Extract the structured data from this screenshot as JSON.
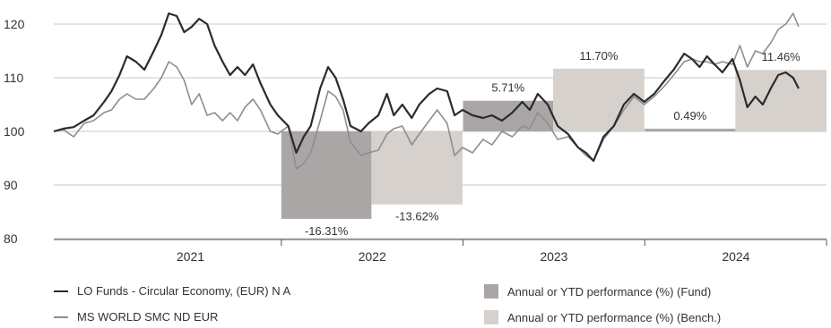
{
  "chart_data": {
    "type": "line",
    "title": "",
    "xlabel": "",
    "ylabel": "",
    "ylim": [
      80,
      122
    ],
    "y_ticks": [
      80,
      90,
      100,
      110,
      120
    ],
    "grid": true,
    "legend_placement": "bottom",
    "x_axis": {
      "start": "2020-10-01",
      "end": "2024-12-31",
      "tick_labels": [
        "2021",
        "2022",
        "2023",
        "2024"
      ]
    },
    "series": [
      {
        "name": "LO Funds - Circular Economy, (EUR) N A",
        "color": "#2b2b2b",
        "points": [
          [
            "2020-10-01",
            100
          ],
          [
            "2020-10-20",
            100.5
          ],
          [
            "2020-11-10",
            100.8
          ],
          [
            "2020-12-01",
            102
          ],
          [
            "2020-12-20",
            103
          ],
          [
            "2021-01-10",
            105.5
          ],
          [
            "2021-01-25",
            107.5
          ],
          [
            "2021-02-10",
            110.5
          ],
          [
            "2021-02-25",
            114
          ],
          [
            "2021-03-15",
            113
          ],
          [
            "2021-04-01",
            111.5
          ],
          [
            "2021-04-20",
            115
          ],
          [
            "2021-05-05",
            118
          ],
          [
            "2021-05-20",
            122
          ],
          [
            "2021-06-05",
            121.5
          ],
          [
            "2021-06-20",
            118.5
          ],
          [
            "2021-07-05",
            119.5
          ],
          [
            "2021-07-20",
            121
          ],
          [
            "2021-08-05",
            120
          ],
          [
            "2021-08-20",
            116
          ],
          [
            "2021-09-05",
            113
          ],
          [
            "2021-09-20",
            110.5
          ],
          [
            "2021-10-05",
            112
          ],
          [
            "2021-10-20",
            110.5
          ],
          [
            "2021-11-05",
            112.5
          ],
          [
            "2021-11-20",
            109
          ],
          [
            "2021-12-10",
            105
          ],
          [
            "2021-12-25",
            103
          ],
          [
            "2022-01-15",
            101
          ],
          [
            "2022-01-31",
            96
          ],
          [
            "2022-02-15",
            99
          ],
          [
            "2022-03-01",
            101
          ],
          [
            "2022-03-20",
            108
          ],
          [
            "2022-04-05",
            112
          ],
          [
            "2022-04-20",
            110
          ],
          [
            "2022-05-05",
            106
          ],
          [
            "2022-05-20",
            101
          ],
          [
            "2022-06-10",
            100
          ],
          [
            "2022-06-25",
            101.5
          ],
          [
            "2022-07-15",
            103
          ],
          [
            "2022-08-01",
            107
          ],
          [
            "2022-08-15",
            103
          ],
          [
            "2022-09-01",
            105
          ],
          [
            "2022-09-20",
            102.5
          ],
          [
            "2022-10-05",
            105
          ],
          [
            "2022-10-25",
            107
          ],
          [
            "2022-11-10",
            108
          ],
          [
            "2022-11-30",
            107.5
          ],
          [
            "2022-12-15",
            103
          ],
          [
            "2022-12-31",
            104
          ],
          [
            "2023-01-20",
            103
          ],
          [
            "2023-02-10",
            102.5
          ],
          [
            "2023-02-28",
            103
          ],
          [
            "2023-03-20",
            102
          ],
          [
            "2023-04-10",
            103.5
          ],
          [
            "2023-04-30",
            105.5
          ],
          [
            "2023-05-15",
            104
          ],
          [
            "2023-05-31",
            107
          ],
          [
            "2023-06-20",
            105
          ],
          [
            "2023-07-10",
            101
          ],
          [
            "2023-07-31",
            99.5
          ],
          [
            "2023-08-20",
            97
          ],
          [
            "2023-09-05",
            96
          ],
          [
            "2023-09-20",
            94.5
          ],
          [
            "2023-10-10",
            99
          ],
          [
            "2023-10-31",
            101
          ],
          [
            "2023-11-20",
            105
          ],
          [
            "2023-12-10",
            107
          ],
          [
            "2023-12-31",
            105.5
          ],
          [
            "2024-01-20",
            107
          ],
          [
            "2024-02-10",
            109.5
          ],
          [
            "2024-02-28",
            111.5
          ],
          [
            "2024-03-20",
            114.5
          ],
          [
            "2024-04-05",
            113.5
          ],
          [
            "2024-04-20",
            112
          ],
          [
            "2024-05-05",
            114
          ],
          [
            "2024-05-20",
            112.5
          ],
          [
            "2024-06-05",
            111
          ],
          [
            "2024-06-25",
            113.5
          ],
          [
            "2024-07-10",
            109.5
          ],
          [
            "2024-07-25",
            104.5
          ],
          [
            "2024-08-10",
            106.5
          ],
          [
            "2024-08-25",
            105
          ],
          [
            "2024-09-10",
            108
          ],
          [
            "2024-09-25",
            110.5
          ],
          [
            "2024-10-10",
            111
          ],
          [
            "2024-10-25",
            110
          ],
          [
            "2024-11-05",
            108
          ]
        ]
      },
      {
        "name": "MS WORLD SMC ND EUR",
        "color": "#8e8e8e",
        "points": [
          [
            "2020-10-01",
            100
          ],
          [
            "2020-10-20",
            100.3
          ],
          [
            "2020-11-10",
            99
          ],
          [
            "2020-12-01",
            101.5
          ],
          [
            "2020-12-20",
            102
          ],
          [
            "2021-01-10",
            103.5
          ],
          [
            "2021-01-25",
            104
          ],
          [
            "2021-02-10",
            106
          ],
          [
            "2021-02-25",
            107
          ],
          [
            "2021-03-15",
            106
          ],
          [
            "2021-04-01",
            106
          ],
          [
            "2021-04-20",
            108
          ],
          [
            "2021-05-05",
            110
          ],
          [
            "2021-05-20",
            113
          ],
          [
            "2021-06-05",
            112
          ],
          [
            "2021-06-20",
            109.5
          ],
          [
            "2021-07-05",
            105
          ],
          [
            "2021-07-20",
            107
          ],
          [
            "2021-08-05",
            103
          ],
          [
            "2021-08-20",
            103.5
          ],
          [
            "2021-09-05",
            102
          ],
          [
            "2021-09-20",
            103.5
          ],
          [
            "2021-10-05",
            102
          ],
          [
            "2021-10-20",
            104.5
          ],
          [
            "2021-11-05",
            106
          ],
          [
            "2021-11-20",
            104
          ],
          [
            "2021-12-10",
            100
          ],
          [
            "2021-12-25",
            99.5
          ],
          [
            "2022-01-15",
            101
          ],
          [
            "2022-01-31",
            93
          ],
          [
            "2022-02-15",
            94
          ],
          [
            "2022-03-01",
            96
          ],
          [
            "2022-03-20",
            102
          ],
          [
            "2022-04-05",
            107.5
          ],
          [
            "2022-04-20",
            106.5
          ],
          [
            "2022-05-05",
            104
          ],
          [
            "2022-05-20",
            98
          ],
          [
            "2022-06-10",
            95.5
          ],
          [
            "2022-06-25",
            96
          ],
          [
            "2022-07-15",
            96.5
          ],
          [
            "2022-08-01",
            99.5
          ],
          [
            "2022-08-15",
            100.5
          ],
          [
            "2022-09-01",
            101
          ],
          [
            "2022-09-20",
            97.5
          ],
          [
            "2022-10-05",
            99.5
          ],
          [
            "2022-10-25",
            102
          ],
          [
            "2022-11-10",
            104
          ],
          [
            "2022-11-30",
            101.5
          ],
          [
            "2022-12-15",
            95.5
          ],
          [
            "2022-12-31",
            97
          ],
          [
            "2023-01-20",
            96
          ],
          [
            "2023-02-10",
            98.5
          ],
          [
            "2023-02-28",
            97.5
          ],
          [
            "2023-03-20",
            100
          ],
          [
            "2023-04-10",
            99
          ],
          [
            "2023-04-30",
            101
          ],
          [
            "2023-05-15",
            100.5
          ],
          [
            "2023-05-31",
            103.5
          ],
          [
            "2023-06-20",
            101.5
          ],
          [
            "2023-07-10",
            98.5
          ],
          [
            "2023-07-31",
            99
          ],
          [
            "2023-08-20",
            97
          ],
          [
            "2023-09-05",
            95.5
          ],
          [
            "2023-09-20",
            94.5
          ],
          [
            "2023-10-10",
            98.5
          ],
          [
            "2023-10-31",
            101
          ],
          [
            "2023-11-20",
            104
          ],
          [
            "2023-12-10",
            106.5
          ],
          [
            "2023-12-31",
            105
          ],
          [
            "2024-01-20",
            106.5
          ],
          [
            "2024-02-10",
            108.5
          ],
          [
            "2024-02-28",
            110.5
          ],
          [
            "2024-03-20",
            113
          ],
          [
            "2024-04-05",
            113.5
          ],
          [
            "2024-04-20",
            113
          ],
          [
            "2024-05-05",
            113
          ],
          [
            "2024-05-20",
            112.5
          ],
          [
            "2024-06-05",
            113
          ],
          [
            "2024-06-25",
            112.5
          ],
          [
            "2024-07-10",
            116
          ],
          [
            "2024-07-25",
            112
          ],
          [
            "2024-08-10",
            115
          ],
          [
            "2024-08-25",
            114.5
          ],
          [
            "2024-09-10",
            116.5
          ],
          [
            "2024-09-25",
            119
          ],
          [
            "2024-10-10",
            120
          ],
          [
            "2024-10-25",
            122
          ],
          [
            "2024-11-05",
            119.5
          ]
        ]
      }
    ],
    "bars": [
      {
        "series": "Annual or YTD performance (%) (Fund)",
        "start": "2022-01-01",
        "end": "2022-07-01",
        "value": -16.31,
        "label": "-16.31%",
        "color": "#aaa6a6"
      },
      {
        "series": "Annual or YTD performance (%) (Bench.)",
        "start": "2022-07-01",
        "end": "2022-12-31",
        "value": -13.62,
        "label": "-13.62%",
        "color": "#d6d1cc"
      },
      {
        "series": "Annual or YTD performance (%) (Fund)",
        "start": "2023-01-01",
        "end": "2023-07-01",
        "value": 5.71,
        "label": "5.71%",
        "color": "#aaa6a6"
      },
      {
        "series": "Annual or YTD performance (%) (Bench.)",
        "start": "2023-07-01",
        "end": "2023-12-31",
        "value": 11.7,
        "label": "11.70%",
        "color": "#d6d1cc"
      },
      {
        "series": "Annual or YTD performance (%) (Fund)",
        "start": "2024-01-01",
        "end": "2024-07-01",
        "value": 0.49,
        "label": "0.49%",
        "color": "#aaa6a6"
      },
      {
        "series": "Annual or YTD performance (%) (Bench.)",
        "start": "2024-07-01",
        "end": "2024-12-31",
        "value": 11.46,
        "label": "11.46%",
        "color": "#d6d1cc"
      }
    ]
  },
  "legend": {
    "fund_line": "LO Funds - Circular Economy, (EUR) N A",
    "bench_line": "MS WORLD SMC ND EUR",
    "fund_bar": "Annual or YTD performance (%) (Fund)",
    "bench_bar": "Annual or YTD performance (%) (Bench.)",
    "colors": {
      "fund_line": "#2b2b2b",
      "bench_line": "#8e8e8e",
      "fund_bar": "#aaa6a6",
      "bench_bar": "#d6d1cc"
    }
  }
}
